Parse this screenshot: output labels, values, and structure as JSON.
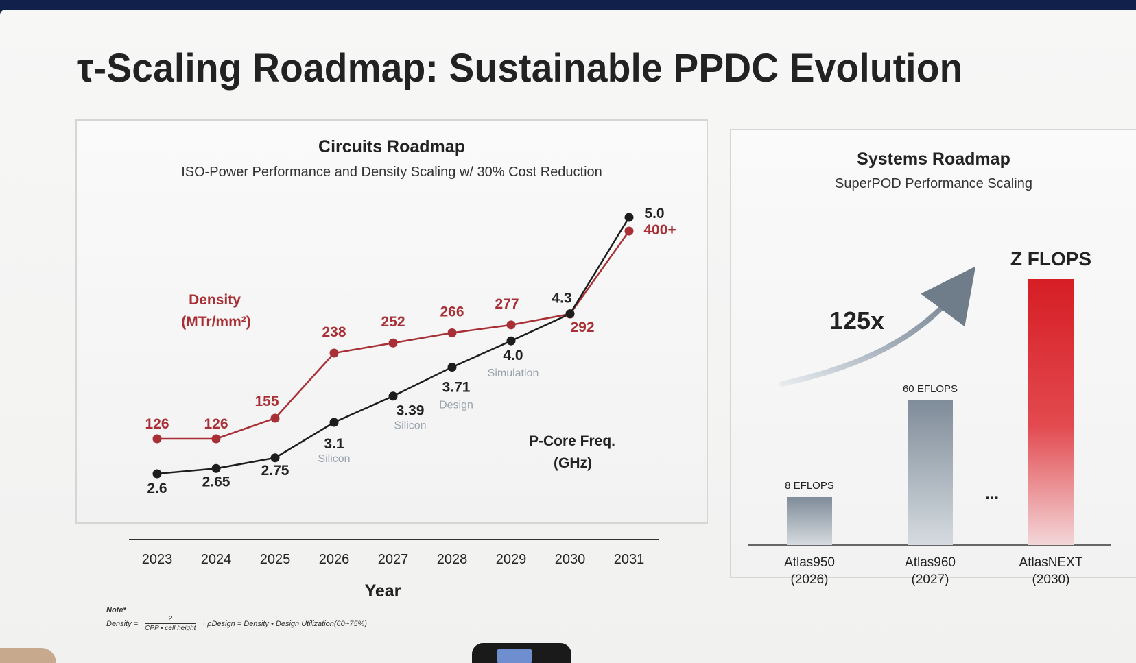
{
  "slide": {
    "title": "τ-Scaling Roadmap: Sustainable PPDC Evolution"
  },
  "left_panel": {
    "title": "Circuits Roadmap",
    "subtitle": "ISO-Power Performance and Density Scaling w/ 30% Cost Reduction",
    "density_label": [
      "Density",
      "(MTr/mm²)"
    ],
    "freq_label": [
      "P-Core Freq.",
      "(GHz)"
    ],
    "xlabel": "Year"
  },
  "right_panel": {
    "title": "Systems Roadmap",
    "subtitle": "SuperPOD Performance Scaling",
    "multiplier": "125x",
    "ellipsis": "..."
  },
  "note": {
    "heading": "Note*",
    "lhs": "Density =",
    "numerator": "2",
    "denominator": "CPP • cell height",
    "design_part": "· ρDesign = Density • Design Utilization(60~75%)"
  },
  "colors": {
    "density": "#a82f35",
    "frequency": "#1d1d1d",
    "grid": "#d1d1d1",
    "panel_border": "#d6d6d6",
    "system_red": "#d62026",
    "system_gray": "#8b97a4"
  },
  "chart_data": [
    {
      "type": "line",
      "title": "Circuits Roadmap",
      "subtitle": "ISO-Power Performance and Density Scaling w/ 30% Cost Reduction",
      "xlabel": "Year",
      "ylabel": "",
      "x": [
        "2023",
        "2024",
        "2025",
        "2026",
        "2027",
        "2028",
        "2029",
        "2030",
        "2031"
      ],
      "series": [
        {
          "name": "Density (MTr/mm²)",
          "values": [
            126,
            126,
            155,
            238,
            252,
            266,
            277,
            292,
            400
          ],
          "labels": [
            "126",
            "126",
            "155",
            "238",
            "252",
            "266",
            "277",
            "292",
            "400+"
          ]
        },
        {
          "name": "P-Core Freq. (GHz)",
          "values": [
            2.6,
            2.65,
            2.75,
            3.1,
            3.39,
            3.71,
            4.0,
            4.3,
            5.0
          ],
          "labels": [
            "2.6",
            "2.65",
            "2.75",
            "3.1",
            "3.39",
            "3.71",
            "4.0",
            "4.3",
            "5.0"
          ],
          "notes": [
            "",
            "",
            "",
            "Silicon",
            "Silicon",
            "Design",
            "Simulation",
            "",
            ""
          ]
        }
      ],
      "grid": false,
      "legend": "inline"
    },
    {
      "type": "bar",
      "title": "Systems Roadmap",
      "subtitle": "SuperPOD Performance Scaling",
      "categories": [
        "Atlas950\n(2026)",
        "Atlas960\n(2027)",
        "AtlasNEXT\n(2030)"
      ],
      "category_lines": [
        [
          "Atlas950",
          "(2026)"
        ],
        [
          "Atlas960",
          "(2027)"
        ],
        [
          "AtlasNEXT",
          "(2030)"
        ]
      ],
      "values": [
        8,
        60,
        1000
      ],
      "value_labels": [
        "8 EFLOPS",
        "60 EFLOPS",
        "Z FLOPS"
      ],
      "units": "EFLOPS",
      "grid": false,
      "legend": "none"
    }
  ]
}
